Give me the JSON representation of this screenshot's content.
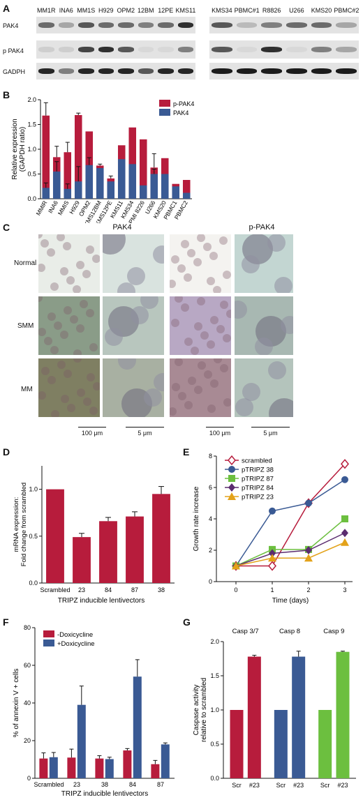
{
  "panels": {
    "a": "A",
    "b": "B",
    "c": "C",
    "d": "D",
    "e": "E",
    "f": "F",
    "g": "G"
  },
  "western": {
    "left_lanes": [
      "MM1R",
      "INA6",
      "MM1S",
      "H929",
      "OPM2",
      "12BM",
      "12PE",
      "KMS11"
    ],
    "right_lanes": [
      "KMS34",
      "PBMC#1",
      "R8826",
      "U266",
      "KMS20",
      "PBMC#2"
    ],
    "row_labels": [
      "PAK4",
      "p PAK4",
      "GADPH"
    ]
  },
  "histology": {
    "col_labels": [
      "PAK4",
      "p-PAK4"
    ],
    "row_labels": [
      "Normal",
      "SMM",
      "MM"
    ],
    "scale_labels": [
      "100 μm",
      "5 μm",
      "100 μm",
      "5 μm"
    ]
  },
  "chart_data": [
    {
      "id": "B",
      "type": "bar",
      "categories": [
        "MMIR",
        "INA6",
        "MMIS",
        "H929",
        "OPM2",
        "KMS12BM",
        "KMS12PE",
        "KMS11",
        "KMS34",
        "RPMI 8226",
        "U266",
        "KMS20",
        "PBMC1",
        "PBMC2"
      ],
      "series": [
        {
          "name": "PAK4",
          "values": [
            0.22,
            0.55,
            0.2,
            0.35,
            0.68,
            0.62,
            0.35,
            0.8,
            0.7,
            0.27,
            0.5,
            0.5,
            0.25,
            0.12
          ]
        },
        {
          "name": "p-PAK4",
          "values": [
            1.68,
            0.84,
            0.94,
            1.69,
            1.36,
            0.67,
            0.41,
            1.08,
            1.44,
            1.2,
            0.63,
            0.82,
            0.3,
            0.38
          ]
        }
      ],
      "error": [
        0.26,
        0.22,
        0.2,
        0.04,
        0,
        0.03,
        0.05,
        0,
        0,
        0,
        0.28,
        0,
        0,
        0
      ],
      "error_pak4": [
        0.1,
        0.2,
        0.1,
        0.3,
        0.15,
        0,
        0,
        0,
        0,
        0,
        0.1,
        0,
        0,
        0
      ],
      "ylabel": "Relative expression\n(GAPDH ratio)",
      "ylim": [
        0,
        2.0
      ],
      "yticks": [
        "0.0",
        "0.5",
        "1.0",
        "1.5",
        "2.0"
      ],
      "legend": [
        "p-PAK4",
        "PAK4"
      ],
      "colors": {
        "PAK4": "#3a5a94",
        "p-PAK4": "#b71c3c"
      }
    },
    {
      "id": "D",
      "type": "bar",
      "categories": [
        "Scrambled",
        "23",
        "84",
        "87",
        "38"
      ],
      "values": [
        1.0,
        0.49,
        0.66,
        0.71,
        0.95
      ],
      "error": [
        0,
        0.04,
        0.04,
        0.05,
        0.08
      ],
      "ylabel": "mRNA expression:\nFold change from scrambled",
      "xlabel": "TRIPZ inducible lentivectors",
      "ylim": [
        0,
        1.25
      ],
      "yticks": [
        "0.0",
        "0.5",
        "1.0"
      ],
      "color": "#b71c3c"
    },
    {
      "id": "E",
      "type": "line",
      "x": [
        0,
        1,
        2,
        3
      ],
      "series": [
        {
          "name": "scrambled",
          "values": [
            1,
            1,
            5,
            7.5
          ],
          "color": "#b71c3c",
          "marker": "diamond-open"
        },
        {
          "name": "pTRIPZ 38",
          "values": [
            1,
            4.5,
            5,
            6.5
          ],
          "color": "#3a5a94",
          "marker": "circle"
        },
        {
          "name": "pTRIPZ 87",
          "values": [
            1,
            2.05,
            2.05,
            4.0
          ],
          "color": "#6cbf3f",
          "marker": "square"
        },
        {
          "name": "pTRIPZ 84",
          "values": [
            1,
            1.8,
            2.0,
            3.1
          ],
          "color": "#5b2c6f",
          "marker": "diamond"
        },
        {
          "name": "pTRIPZ 23",
          "values": [
            1,
            1.5,
            1.5,
            2.5
          ],
          "color": "#e3a21a",
          "marker": "triangle"
        }
      ],
      "ylabel": "Growth rate increase",
      "xlabel": "Time (days)",
      "ylim": [
        0,
        8
      ],
      "yticks": [
        "0",
        "2",
        "4",
        "6",
        "8"
      ],
      "xticks": [
        "0",
        "1",
        "2",
        "3"
      ]
    },
    {
      "id": "F",
      "type": "bar",
      "categories": [
        "Scrambled",
        "23",
        "38",
        "84",
        "87"
      ],
      "series": [
        {
          "name": "-Doxicycline",
          "values": [
            10.5,
            11,
            10.5,
            14.8,
            7.5
          ],
          "color": "#b71c3c"
        },
        {
          "name": "+Doxicycline",
          "values": [
            11.2,
            39,
            10.2,
            54,
            18
          ],
          "color": "#3a5a94"
        }
      ],
      "error": [
        [
          3,
          4.5,
          1.5,
          1,
          2
        ],
        [
          2.5,
          10,
          1,
          9,
          0.8
        ]
      ],
      "ylabel": "% of annexin V + cells",
      "xlabel": "TRIPZ inducible lentivectors",
      "ylim": [
        0,
        80
      ],
      "yticks": [
        "0",
        "20",
        "40",
        "60",
        "80"
      ]
    },
    {
      "id": "G",
      "type": "bar",
      "groups": [
        "Casp 3/7",
        "Casp 8",
        "Casp 9"
      ],
      "categories": [
        "Scr",
        "#23",
        "Scr",
        "#23",
        "Scr",
        "#23"
      ],
      "values": [
        1.0,
        1.78,
        1.0,
        1.78,
        1.0,
        1.85
      ],
      "error": [
        0,
        0.02,
        0,
        0.08,
        0,
        0.01
      ],
      "colors": [
        "#b71c3c",
        "#b71c3c",
        "#3a5a94",
        "#3a5a94",
        "#6cbf3f",
        "#6cbf3f"
      ],
      "ylabel": "Caspase activity\nrelative to scrambled",
      "ylim": [
        0,
        2.0
      ],
      "yticks": [
        "0.0",
        "0.5",
        "1.0",
        "1.5",
        "2.0"
      ]
    }
  ]
}
